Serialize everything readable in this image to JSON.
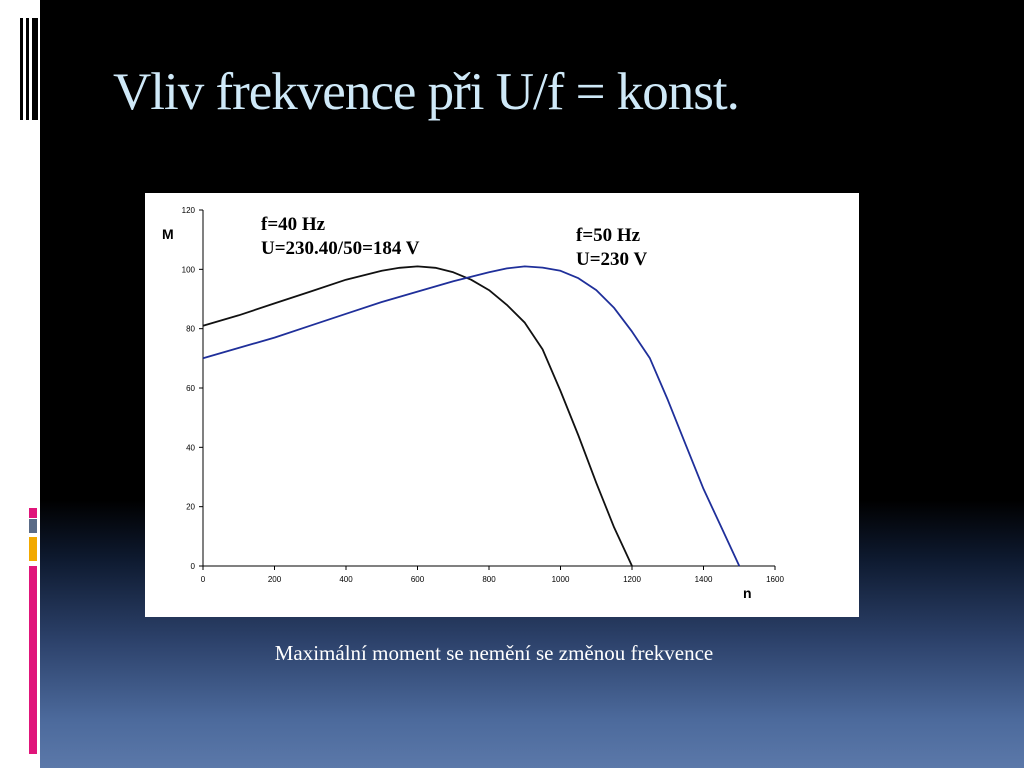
{
  "slide": {
    "title": "Vliv frekvence při U/f = konst.",
    "caption": "Maximální moment se nemění se změnou frekvence"
  },
  "theme": {
    "title_color": "#cfe9f8",
    "accent_colors": [
      "#e0157a",
      "#5a6b87",
      "#f2a900",
      "#e0157a"
    ]
  },
  "chart_data": {
    "type": "line",
    "xlabel": "n",
    "ylabel": "M",
    "xlim": [
      0,
      1600
    ],
    "ylim": [
      0,
      120
    ],
    "x_ticks": [
      0,
      200,
      400,
      600,
      800,
      1000,
      1200,
      1400,
      1600
    ],
    "y_ticks": [
      0,
      20,
      40,
      60,
      80,
      100,
      120
    ],
    "grid": false,
    "series": [
      {
        "color": "#111111",
        "points": [
          [
            0,
            81
          ],
          [
            100,
            84.5
          ],
          [
            200,
            88.5
          ],
          [
            300,
            92.5
          ],
          [
            400,
            96.5
          ],
          [
            500,
            99.5
          ],
          [
            550,
            100.5
          ],
          [
            600,
            101
          ],
          [
            650,
            100.5
          ],
          [
            700,
            99
          ],
          [
            750,
            96.5
          ],
          [
            800,
            93
          ],
          [
            850,
            88
          ],
          [
            900,
            82
          ],
          [
            950,
            73
          ],
          [
            1000,
            59
          ],
          [
            1050,
            44
          ],
          [
            1100,
            28
          ],
          [
            1150,
            13
          ],
          [
            1200,
            0
          ]
        ]
      },
      {
        "color": "#1f2f9a",
        "points": [
          [
            0,
            70
          ],
          [
            100,
            73.5
          ],
          [
            200,
            77
          ],
          [
            300,
            81
          ],
          [
            400,
            85
          ],
          [
            500,
            89
          ],
          [
            600,
            92.5
          ],
          [
            700,
            96
          ],
          [
            800,
            99
          ],
          [
            850,
            100.3
          ],
          [
            900,
            101
          ],
          [
            950,
            100.6
          ],
          [
            1000,
            99.5
          ],
          [
            1050,
            97
          ],
          [
            1100,
            93
          ],
          [
            1150,
            87
          ],
          [
            1200,
            79
          ],
          [
            1250,
            70
          ],
          [
            1300,
            56
          ],
          [
            1350,
            41
          ],
          [
            1400,
            26
          ],
          [
            1450,
            13
          ],
          [
            1500,
            0
          ]
        ]
      }
    ],
    "annotations": [
      {
        "lines": [
          "f=40 Hz",
          "U=230.40/50=184 V"
        ],
        "near_series": 0
      },
      {
        "lines": [
          "f=50 Hz",
          "U=230 V"
        ],
        "near_series": 1
      }
    ]
  }
}
